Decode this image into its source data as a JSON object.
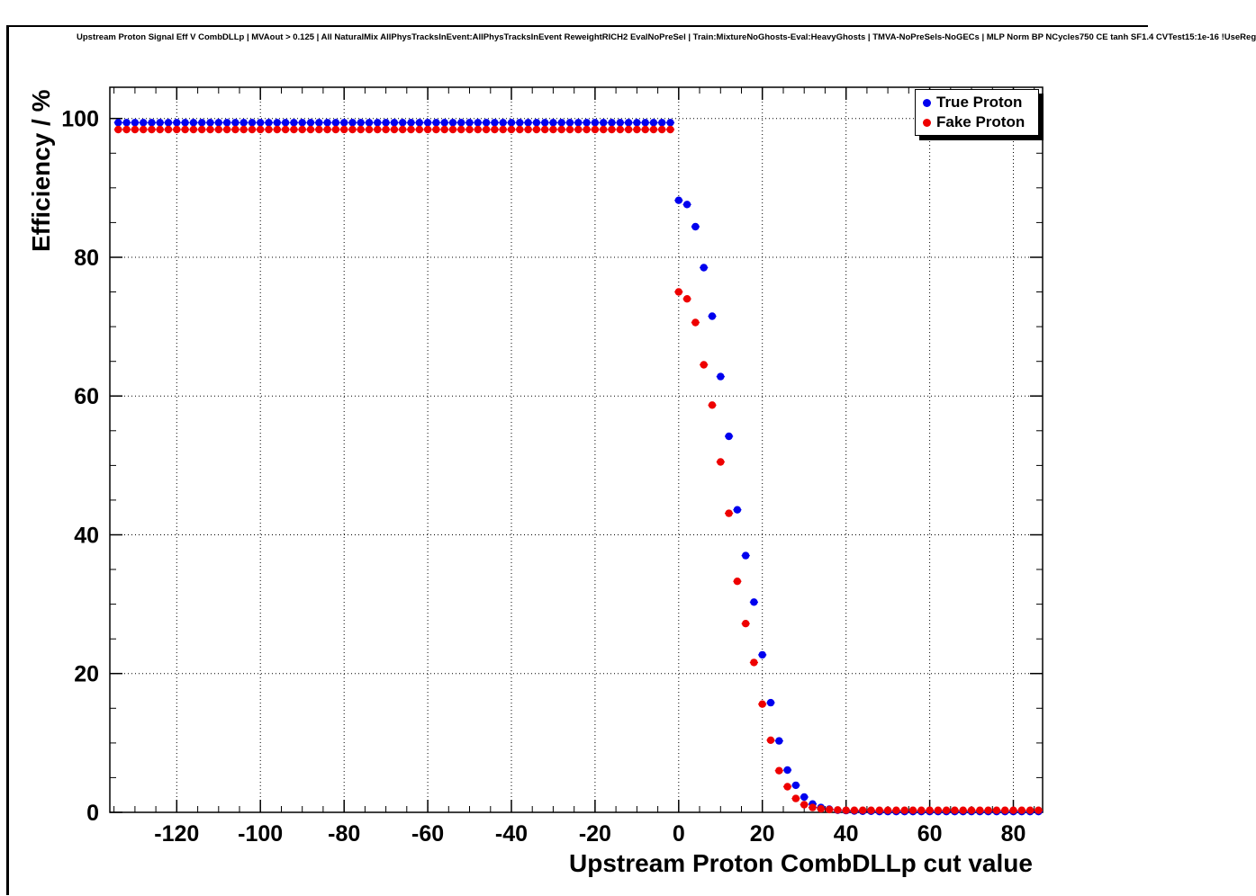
{
  "chart_data": {
    "type": "scatter",
    "title": "Upstream Proton Signal Eff V CombDLLp | MVAout > 0.125 | All NaturalMix AllPhysTracksInEvent:AllPhysTracksInEvent ReweightRICH2 EvalNoPreSel | Train:MixtureNoGhosts-Eval:HeavyGhosts | TMVA-NoPreSels-NoGECs | MLP Norm BP NCycles750 CE tanh SF1.4 CVTest15:1e-16 !UseReg",
    "xlabel": "Upstream Proton CombDLLp cut value",
    "ylabel": "Efficiency / %",
    "xlim": [
      -136,
      87
    ],
    "ylim": [
      0,
      104.5
    ],
    "x_ticks": [
      -120,
      -100,
      -80,
      -60,
      -40,
      -20,
      0,
      20,
      40,
      60,
      80
    ],
    "y_ticks": [
      0,
      20,
      40,
      60,
      80,
      100
    ],
    "grid": true,
    "legend_position": "top-right",
    "series": [
      {
        "name": "True Proton",
        "color": "#0000ee",
        "points": [
          [
            -134,
            99.4
          ],
          [
            -132,
            99.4
          ],
          [
            -130,
            99.4
          ],
          [
            -128,
            99.4
          ],
          [
            -126,
            99.4
          ],
          [
            -124,
            99.4
          ],
          [
            -122,
            99.4
          ],
          [
            -120,
            99.4
          ],
          [
            -118,
            99.4
          ],
          [
            -116,
            99.4
          ],
          [
            -114,
            99.4
          ],
          [
            -112,
            99.4
          ],
          [
            -110,
            99.4
          ],
          [
            -108,
            99.4
          ],
          [
            -106,
            99.4
          ],
          [
            -104,
            99.4
          ],
          [
            -102,
            99.4
          ],
          [
            -100,
            99.4
          ],
          [
            -98,
            99.4
          ],
          [
            -96,
            99.4
          ],
          [
            -94,
            99.4
          ],
          [
            -92,
            99.4
          ],
          [
            -90,
            99.4
          ],
          [
            -88,
            99.4
          ],
          [
            -86,
            99.4
          ],
          [
            -84,
            99.4
          ],
          [
            -82,
            99.4
          ],
          [
            -80,
            99.4
          ],
          [
            -78,
            99.4
          ],
          [
            -76,
            99.4
          ],
          [
            -74,
            99.4
          ],
          [
            -72,
            99.4
          ],
          [
            -70,
            99.4
          ],
          [
            -68,
            99.4
          ],
          [
            -66,
            99.4
          ],
          [
            -64,
            99.4
          ],
          [
            -62,
            99.4
          ],
          [
            -60,
            99.4
          ],
          [
            -58,
            99.4
          ],
          [
            -56,
            99.4
          ],
          [
            -54,
            99.4
          ],
          [
            -52,
            99.4
          ],
          [
            -50,
            99.4
          ],
          [
            -48,
            99.4
          ],
          [
            -46,
            99.4
          ],
          [
            -44,
            99.4
          ],
          [
            -42,
            99.4
          ],
          [
            -40,
            99.4
          ],
          [
            -38,
            99.4
          ],
          [
            -36,
            99.4
          ],
          [
            -34,
            99.4
          ],
          [
            -32,
            99.4
          ],
          [
            -30,
            99.4
          ],
          [
            -28,
            99.4
          ],
          [
            -26,
            99.4
          ],
          [
            -24,
            99.4
          ],
          [
            -22,
            99.4
          ],
          [
            -20,
            99.4
          ],
          [
            -18,
            99.4
          ],
          [
            -16,
            99.4
          ],
          [
            -14,
            99.4
          ],
          [
            -12,
            99.4
          ],
          [
            -10,
            99.4
          ],
          [
            -8,
            99.4
          ],
          [
            -6,
            99.4
          ],
          [
            -4,
            99.4
          ],
          [
            -2,
            99.4
          ],
          [
            0,
            88.2
          ],
          [
            2,
            87.6
          ],
          [
            4,
            84.4
          ],
          [
            6,
            78.5
          ],
          [
            8,
            71.5
          ],
          [
            10,
            62.8
          ],
          [
            12,
            54.2
          ],
          [
            14,
            43.6
          ],
          [
            16,
            37.0
          ],
          [
            18,
            30.3
          ],
          [
            20,
            22.7
          ],
          [
            22,
            15.8
          ],
          [
            24,
            10.3
          ],
          [
            26,
            6.1
          ],
          [
            28,
            3.9
          ],
          [
            30,
            2.2
          ],
          [
            32,
            1.2
          ],
          [
            34,
            0.7
          ],
          [
            36,
            0.45
          ],
          [
            38,
            0.3
          ],
          [
            40,
            0.25
          ],
          [
            42,
            0.2
          ],
          [
            44,
            0.15
          ],
          [
            46,
            0.15
          ],
          [
            48,
            0.1
          ],
          [
            50,
            0.1
          ],
          [
            52,
            0.1
          ],
          [
            54,
            0.1
          ],
          [
            56,
            0.1
          ],
          [
            58,
            0.1
          ],
          [
            60,
            0.1
          ],
          [
            62,
            0.1
          ],
          [
            64,
            0.1
          ],
          [
            66,
            0.1
          ],
          [
            68,
            0.1
          ],
          [
            70,
            0.1
          ],
          [
            72,
            0.1
          ],
          [
            74,
            0.1
          ],
          [
            76,
            0.1
          ],
          [
            78,
            0.1
          ],
          [
            80,
            0.1
          ],
          [
            82,
            0.1
          ],
          [
            84,
            0.1
          ],
          [
            86,
            0.1
          ]
        ]
      },
      {
        "name": "Fake Proton",
        "color": "#ee0000",
        "points": [
          [
            -134,
            98.4
          ],
          [
            -132,
            98.4
          ],
          [
            -130,
            98.4
          ],
          [
            -128,
            98.4
          ],
          [
            -126,
            98.4
          ],
          [
            -124,
            98.4
          ],
          [
            -122,
            98.4
          ],
          [
            -120,
            98.4
          ],
          [
            -118,
            98.4
          ],
          [
            -116,
            98.4
          ],
          [
            -114,
            98.4
          ],
          [
            -112,
            98.4
          ],
          [
            -110,
            98.4
          ],
          [
            -108,
            98.4
          ],
          [
            -106,
            98.4
          ],
          [
            -104,
            98.4
          ],
          [
            -102,
            98.4
          ],
          [
            -100,
            98.4
          ],
          [
            -98,
            98.4
          ],
          [
            -96,
            98.4
          ],
          [
            -94,
            98.4
          ],
          [
            -92,
            98.4
          ],
          [
            -90,
            98.4
          ],
          [
            -88,
            98.4
          ],
          [
            -86,
            98.4
          ],
          [
            -84,
            98.4
          ],
          [
            -82,
            98.4
          ],
          [
            -80,
            98.4
          ],
          [
            -78,
            98.4
          ],
          [
            -76,
            98.4
          ],
          [
            -74,
            98.4
          ],
          [
            -72,
            98.4
          ],
          [
            -70,
            98.4
          ],
          [
            -68,
            98.4
          ],
          [
            -66,
            98.4
          ],
          [
            -64,
            98.4
          ],
          [
            -62,
            98.4
          ],
          [
            -60,
            98.4
          ],
          [
            -58,
            98.4
          ],
          [
            -56,
            98.4
          ],
          [
            -54,
            98.4
          ],
          [
            -52,
            98.4
          ],
          [
            -50,
            98.4
          ],
          [
            -48,
            98.4
          ],
          [
            -46,
            98.4
          ],
          [
            -44,
            98.4
          ],
          [
            -42,
            98.4
          ],
          [
            -40,
            98.4
          ],
          [
            -38,
            98.4
          ],
          [
            -36,
            98.4
          ],
          [
            -34,
            98.4
          ],
          [
            -32,
            98.4
          ],
          [
            -30,
            98.4
          ],
          [
            -28,
            98.4
          ],
          [
            -26,
            98.4
          ],
          [
            -24,
            98.4
          ],
          [
            -22,
            98.4
          ],
          [
            -20,
            98.4
          ],
          [
            -18,
            98.4
          ],
          [
            -16,
            98.4
          ],
          [
            -14,
            98.4
          ],
          [
            -12,
            98.4
          ],
          [
            -10,
            98.4
          ],
          [
            -8,
            98.4
          ],
          [
            -6,
            98.4
          ],
          [
            -4,
            98.4
          ],
          [
            -2,
            98.4
          ],
          [
            0,
            75.0
          ],
          [
            2,
            74.0
          ],
          [
            4,
            70.6
          ],
          [
            6,
            64.5
          ],
          [
            8,
            58.7
          ],
          [
            10,
            50.5
          ],
          [
            12,
            43.1
          ],
          [
            14,
            33.3
          ],
          [
            16,
            27.2
          ],
          [
            18,
            21.6
          ],
          [
            20,
            15.6
          ],
          [
            22,
            10.4
          ],
          [
            24,
            6.0
          ],
          [
            26,
            3.7
          ],
          [
            28,
            2.0
          ],
          [
            30,
            1.1
          ],
          [
            32,
            0.7
          ],
          [
            34,
            0.5
          ],
          [
            36,
            0.4
          ],
          [
            38,
            0.35
          ],
          [
            40,
            0.3
          ],
          [
            42,
            0.3
          ],
          [
            44,
            0.3
          ],
          [
            46,
            0.3
          ],
          [
            48,
            0.3
          ],
          [
            50,
            0.3
          ],
          [
            52,
            0.3
          ],
          [
            54,
            0.3
          ],
          [
            56,
            0.3
          ],
          [
            58,
            0.3
          ],
          [
            60,
            0.3
          ],
          [
            62,
            0.3
          ],
          [
            64,
            0.3
          ],
          [
            66,
            0.3
          ],
          [
            68,
            0.3
          ],
          [
            70,
            0.3
          ],
          [
            72,
            0.3
          ],
          [
            74,
            0.3
          ],
          [
            76,
            0.3
          ],
          [
            78,
            0.3
          ],
          [
            80,
            0.3
          ],
          [
            82,
            0.3
          ],
          [
            84,
            0.3
          ],
          [
            86,
            0.3
          ]
        ]
      }
    ]
  }
}
